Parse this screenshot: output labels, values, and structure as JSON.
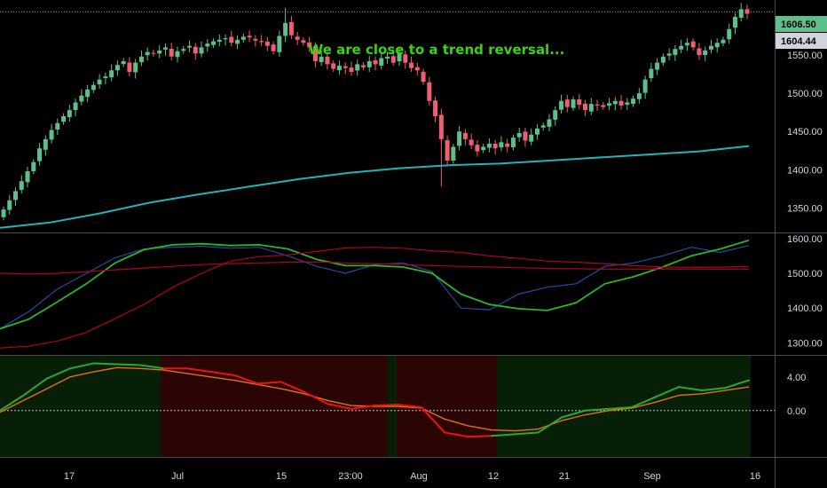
{
  "colors": {
    "background": "#000000",
    "up": "#5fbf8c",
    "down": "#ef5f6f",
    "ma": "#22b2b8",
    "annotation": "#3bd20f",
    "axis_text": "#d1d4dc",
    "pane_separator": "#4a4a4a",
    "series_blue": "#1f4f9e",
    "series_green": "#2bb52b",
    "series_red": "#b00024",
    "osc_green": "#2fa52f",
    "osc_orange": "#e0701a",
    "osc_red": "#ee1111",
    "bg_green": "#071f07",
    "bg_red": "#2b0404"
  },
  "chart_data": [
    {
      "type": "candlestick",
      "pane": "price",
      "annotation": "We are close to a trend reversal...",
      "yticks": [
        "1350.00",
        "1400.00",
        "1450.00",
        "1500.00",
        "1550.00"
      ],
      "ylim": [
        1318,
        1622
      ],
      "price_labels": [
        {
          "value": 1606.5,
          "text": "1606.50",
          "bg": "#5fbf8c",
          "fg": "#000000"
        },
        {
          "value": 1604.44,
          "text": "1604.44",
          "bg": "#d1d4dc",
          "fg": "#000000"
        }
      ],
      "candles_close": [
        1348,
        1360,
        1372,
        1385,
        1398,
        1410,
        1428,
        1440,
        1452,
        1461,
        1470,
        1478,
        1488,
        1497,
        1505,
        1511,
        1518,
        1522,
        1530,
        1537,
        1542,
        1528,
        1540,
        1548,
        1554,
        1552,
        1556,
        1560,
        1548,
        1555,
        1558,
        1562,
        1552,
        1560,
        1565,
        1568,
        1570,
        1572,
        1566,
        1570,
        1574,
        1573,
        1569,
        1567,
        1562,
        1555,
        1575,
        1592,
        1576,
        1570,
        1566,
        1560,
        1542,
        1548,
        1538,
        1532,
        1536,
        1533,
        1528,
        1538,
        1534,
        1542,
        1538,
        1546,
        1548,
        1540,
        1552,
        1540,
        1533,
        1530,
        1515,
        1490,
        1470,
        1440,
        1412,
        1430,
        1450,
        1440,
        1432,
        1424,
        1430,
        1434,
        1428,
        1436,
        1430,
        1442,
        1448,
        1438,
        1446,
        1454,
        1458,
        1466,
        1478,
        1490,
        1482,
        1492,
        1485,
        1478,
        1486,
        1484,
        1482,
        1487,
        1490,
        1484,
        1488,
        1493,
        1500,
        1518,
        1532,
        1540,
        1548,
        1552,
        1558,
        1562,
        1566,
        1560,
        1550,
        1556,
        1562,
        1566,
        1570,
        1584,
        1600,
        1610,
        1604
      ],
      "ma_line": [
        1324,
        1331,
        1343,
        1357,
        1368,
        1378,
        1388,
        1396,
        1402,
        1406,
        1408,
        1412,
        1416,
        1420,
        1424,
        1431
      ],
      "xticks": [
        {
          "label": "17",
          "x": 78
        },
        {
          "label": "Jul",
          "x": 200
        },
        {
          "label": "15",
          "x": 317
        },
        {
          "label": "23:00",
          "x": 395
        },
        {
          "label": "Aug",
          "x": 472
        },
        {
          "label": "12",
          "x": 556
        },
        {
          "label": "21",
          "x": 636
        },
        {
          "label": "Sep",
          "x": 735
        },
        {
          "label": "16",
          "x": 851
        }
      ]
    },
    {
      "type": "line",
      "pane": "indicator",
      "yticks": [
        "1300.00",
        "1400.00",
        "1500.00",
        "1600.00"
      ],
      "ylim": [
        1265,
        1615
      ],
      "series": [
        {
          "color": "blue",
          "values": [
            1340,
            1390,
            1455,
            1500,
            1545,
            1570,
            1575,
            1578,
            1572,
            1575,
            1550,
            1520,
            1500,
            1525,
            1530,
            1505,
            1400,
            1395,
            1440,
            1460,
            1470,
            1520,
            1530,
            1550,
            1575,
            1560,
            1580
          ]
        },
        {
          "color": "green",
          "values": [
            1340,
            1368,
            1418,
            1470,
            1530,
            1568,
            1582,
            1585,
            1580,
            1582,
            1570,
            1540,
            1522,
            1522,
            1518,
            1500,
            1440,
            1410,
            1398,
            1393,
            1415,
            1470,
            1490,
            1518,
            1550,
            1570,
            1595
          ]
        },
        {
          "color": "red",
          "values": [
            1285,
            1290,
            1305,
            1330,
            1370,
            1410,
            1460,
            1500,
            1535,
            1548,
            1553,
            1563,
            1573,
            1575,
            1572,
            1565,
            1560,
            1550,
            1543,
            1535,
            1532,
            1528,
            1522,
            1518,
            1517,
            1518,
            1520
          ]
        },
        {
          "color": "red-flat",
          "values": [
            1500,
            1498,
            1500,
            1505,
            1510,
            1515,
            1520,
            1525,
            1528,
            1530,
            1532,
            1533,
            1530,
            1528,
            1525,
            1522,
            1520,
            1518,
            1516,
            1514,
            1513,
            1512,
            1512,
            1512,
            1512,
            1512,
            1512
          ]
        }
      ]
    },
    {
      "type": "line",
      "pane": "oscillator",
      "yticks": [
        "0.00",
        "4.00"
      ],
      "ylim": [
        -5.5,
        6.5
      ],
      "zero_line": true,
      "shaded_regions": [
        {
          "from_x": 0,
          "to_x": 181,
          "color": "green"
        },
        {
          "from_x": 181,
          "to_x": 437,
          "color": "red"
        },
        {
          "from_x": 437,
          "to_x": 447,
          "color": "green"
        },
        {
          "from_x": 447,
          "to_x": 560,
          "color": "red"
        },
        {
          "from_x": 560,
          "to_x": 846,
          "color": "green"
        }
      ],
      "series": [
        {
          "color": "green-red",
          "values": [
            0.0,
            1.8,
            3.8,
            5.0,
            5.6,
            5.5,
            5.4,
            5.0,
            5.0,
            4.6,
            4.2,
            3.2,
            3.4,
            2.2,
            0.8,
            0.2,
            0.6,
            0.7,
            0.4,
            -2.6,
            -3.1,
            -3.0,
            -2.8,
            -2.6,
            -0.8,
            0.0,
            0.2,
            0.4,
            1.6,
            2.8,
            2.4,
            2.7,
            3.6
          ]
        },
        {
          "color": "orange",
          "values": [
            -0.2,
            1.2,
            2.6,
            4.0,
            4.6,
            5.1,
            5.0,
            4.8,
            4.4,
            4.0,
            3.6,
            3.1,
            2.6,
            2.0,
            1.2,
            0.6,
            0.5,
            0.5,
            0.3,
            -1.0,
            -1.8,
            -2.3,
            -2.4,
            -2.2,
            -1.2,
            -0.5,
            0.0,
            0.3,
            1.0,
            1.8,
            2.0,
            2.4,
            2.8
          ]
        }
      ]
    }
  ]
}
